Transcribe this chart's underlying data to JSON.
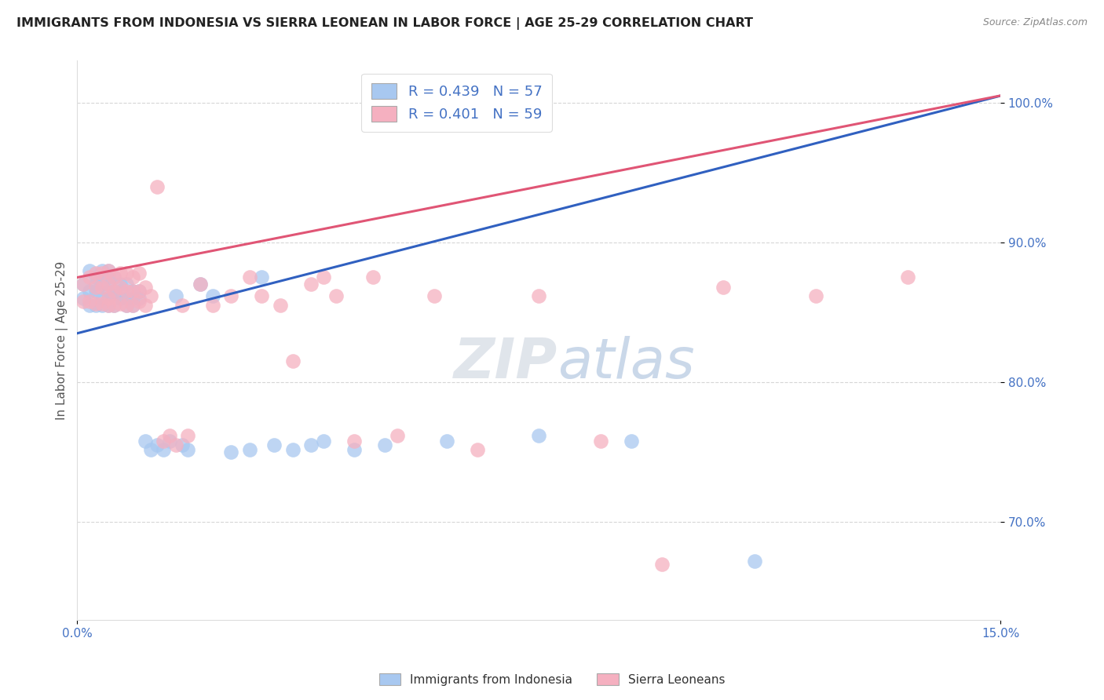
{
  "title": "IMMIGRANTS FROM INDONESIA VS SIERRA LEONEAN IN LABOR FORCE | AGE 25-29 CORRELATION CHART",
  "source": "Source: ZipAtlas.com",
  "ylabel": "In Labor Force | Age 25-29",
  "xlim": [
    0.0,
    0.15
  ],
  "ylim": [
    0.63,
    1.03
  ],
  "indonesia_R": 0.439,
  "indonesia_N": 57,
  "sierra_leone_R": 0.401,
  "sierra_leone_N": 59,
  "indonesia_color": "#a8c8f0",
  "sierra_leone_color": "#f5b0c0",
  "indonesia_line_color": "#3060c0",
  "sierra_leone_line_color": "#e05575",
  "legend_indonesia": "Immigrants from Indonesia",
  "legend_sierra": "Sierra Leoneans",
  "watermark_zip": "ZIP",
  "watermark_atlas": "atlas",
  "indonesia_x": [
    0.001,
    0.001,
    0.002,
    0.002,
    0.002,
    0.003,
    0.003,
    0.003,
    0.003,
    0.004,
    0.004,
    0.004,
    0.004,
    0.005,
    0.005,
    0.005,
    0.005,
    0.005,
    0.005,
    0.006,
    0.006,
    0.006,
    0.006,
    0.007,
    0.007,
    0.007,
    0.008,
    0.008,
    0.008,
    0.009,
    0.009,
    0.009,
    0.01,
    0.01,
    0.011,
    0.012,
    0.013,
    0.014,
    0.015,
    0.016,
    0.017,
    0.018,
    0.02,
    0.022,
    0.025,
    0.028,
    0.03,
    0.032,
    0.035,
    0.038,
    0.04,
    0.045,
    0.05,
    0.06,
    0.075,
    0.09,
    0.11
  ],
  "indonesia_y": [
    0.86,
    0.87,
    0.855,
    0.865,
    0.88,
    0.855,
    0.865,
    0.87,
    0.875,
    0.855,
    0.86,
    0.87,
    0.88,
    0.855,
    0.86,
    0.865,
    0.87,
    0.875,
    0.88,
    0.855,
    0.86,
    0.865,
    0.875,
    0.86,
    0.865,
    0.87,
    0.855,
    0.86,
    0.87,
    0.855,
    0.86,
    0.865,
    0.86,
    0.865,
    0.758,
    0.752,
    0.755,
    0.752,
    0.758,
    0.862,
    0.755,
    0.752,
    0.87,
    0.862,
    0.75,
    0.752,
    0.875,
    0.755,
    0.752,
    0.755,
    0.758,
    0.752,
    0.755,
    0.758,
    0.762,
    0.758,
    0.672
  ],
  "sierra_leone_x": [
    0.001,
    0.001,
    0.002,
    0.002,
    0.003,
    0.003,
    0.003,
    0.004,
    0.004,
    0.004,
    0.005,
    0.005,
    0.005,
    0.005,
    0.006,
    0.006,
    0.006,
    0.007,
    0.007,
    0.007,
    0.008,
    0.008,
    0.008,
    0.009,
    0.009,
    0.009,
    0.01,
    0.01,
    0.01,
    0.011,
    0.011,
    0.012,
    0.013,
    0.014,
    0.015,
    0.016,
    0.017,
    0.018,
    0.02,
    0.022,
    0.025,
    0.028,
    0.03,
    0.033,
    0.035,
    0.038,
    0.04,
    0.042,
    0.045,
    0.048,
    0.052,
    0.058,
    0.065,
    0.075,
    0.085,
    0.095,
    0.105,
    0.12,
    0.135
  ],
  "sierra_leone_y": [
    0.858,
    0.87,
    0.858,
    0.875,
    0.856,
    0.868,
    0.878,
    0.856,
    0.868,
    0.878,
    0.855,
    0.86,
    0.87,
    0.88,
    0.855,
    0.865,
    0.875,
    0.856,
    0.868,
    0.878,
    0.855,
    0.865,
    0.878,
    0.855,
    0.865,
    0.875,
    0.858,
    0.865,
    0.878,
    0.855,
    0.868,
    0.862,
    0.94,
    0.758,
    0.762,
    0.755,
    0.855,
    0.762,
    0.87,
    0.855,
    0.862,
    0.875,
    0.862,
    0.855,
    0.815,
    0.87,
    0.875,
    0.862,
    0.758,
    0.875,
    0.762,
    0.862,
    0.752,
    0.862,
    0.758,
    0.67,
    0.868,
    0.862,
    0.875
  ]
}
